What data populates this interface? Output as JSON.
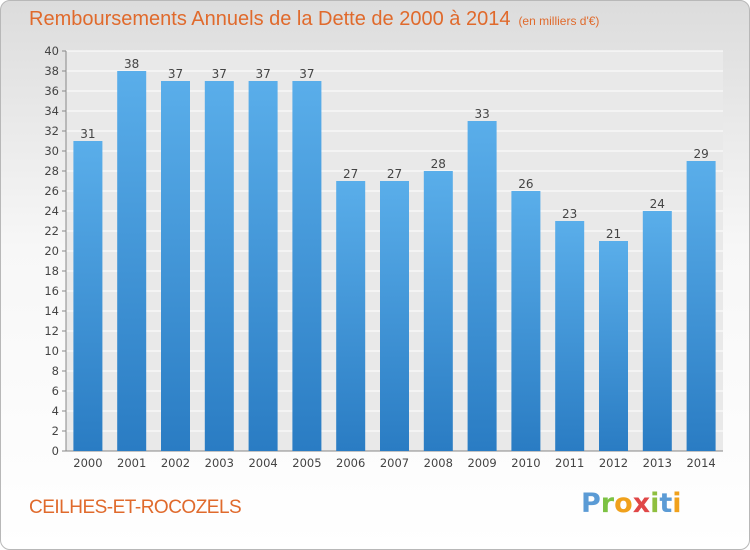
{
  "header": {
    "title": "Remboursements Annuels de la Dette de 2000 à 2014",
    "unit": "(en milliers d'€)"
  },
  "footer": {
    "city": "CEILHES-ET-ROCOZELS",
    "logo": "Proxiti"
  },
  "colors": {
    "title": "#e06a2c",
    "bar_light": "#5aaeea",
    "bar_dark": "#2a7cc3"
  },
  "chart_data": {
    "type": "bar",
    "categories": [
      "2000",
      "2001",
      "2002",
      "2003",
      "2004",
      "2005",
      "2006",
      "2007",
      "2008",
      "2009",
      "2010",
      "2011",
      "2012",
      "2013",
      "2014"
    ],
    "values": [
      31,
      38,
      37,
      37,
      37,
      37,
      27,
      27,
      28,
      33,
      26,
      23,
      21,
      24,
      29
    ],
    "yticks": [
      0,
      2,
      4,
      6,
      8,
      10,
      12,
      14,
      16,
      18,
      20,
      22,
      24,
      26,
      28,
      30,
      32,
      34,
      36,
      38,
      40
    ],
    "ylim": [
      0,
      40
    ],
    "grid": true,
    "data_labels": true
  }
}
